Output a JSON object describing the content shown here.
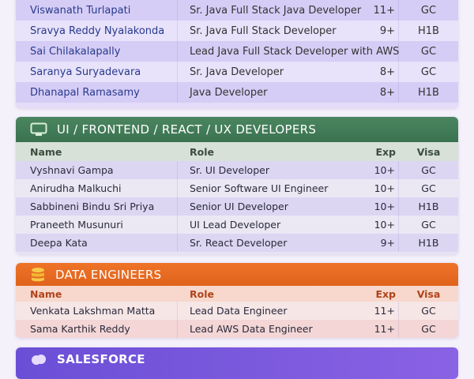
{
  "java": {
    "rows": [
      {
        "name": "Viswanath Turlapati",
        "role": "Sr. Java Full Stack Java Developer",
        "exp": "11+",
        "visa": "GC"
      },
      {
        "name": "Sravya Reddy Nyalakonda",
        "role": "Sr. Java Full Stack Developer",
        "exp": "9+",
        "visa": "H1B"
      },
      {
        "name": "Sai Chilakalapally",
        "role": "Lead Java Full Stack Developer with AWS",
        "exp": "",
        "visa": "GC"
      },
      {
        "name": "Saranya Suryadevara",
        "role": "Sr. Java Developer",
        "exp": "8+",
        "visa": "GC"
      },
      {
        "name": "Dhanapal Ramasamy",
        "role": "Java Developer",
        "exp": "8+",
        "visa": "H1B"
      }
    ]
  },
  "ui": {
    "title": "UI / FRONTEND / REACT / UX DEVELOPERS",
    "icon": "monitor-icon",
    "color": "#3f7a55",
    "columns": {
      "name": "Name",
      "role": "Role",
      "exp": "Exp",
      "visa": "Visa"
    },
    "rows": [
      {
        "name": "Vyshnavi Gampa",
        "role": "Sr. UI Developer",
        "exp": "10+",
        "visa": "GC"
      },
      {
        "name": "Anirudha Malkuchi",
        "role": "Senior Software UI Engineer",
        "exp": "10+",
        "visa": "GC"
      },
      {
        "name": "Sabbineni Bindu Sri Priya",
        "role": "Senior UI Developer",
        "exp": "10+",
        "visa": "H1B"
      },
      {
        "name": "Praneeth Musunuri",
        "role": "UI Lead Developer",
        "exp": "10+",
        "visa": "GC"
      },
      {
        "name": "Deepa Kata",
        "role": "Sr. React Developer",
        "exp": "9+",
        "visa": "H1B"
      }
    ]
  },
  "data": {
    "title": "DATA ENGINEERS",
    "icon": "database-icon",
    "color": "#e8661e",
    "columns": {
      "name": "Name",
      "role": "Role",
      "exp": "Exp",
      "visa": "Visa"
    },
    "rows": [
      {
        "name": "Venkata Lakshman Matta",
        "role": "Lead Data Engineer",
        "exp": "11+",
        "visa": "GC"
      },
      {
        "name": "Sama Karthik Reddy",
        "role": "Lead AWS Data Engineer",
        "exp": "11+",
        "visa": "GC"
      }
    ]
  },
  "salesforce": {
    "title": "SALESFORCE",
    "icon": "cloud-icon",
    "color": "#7b5ce0"
  }
}
